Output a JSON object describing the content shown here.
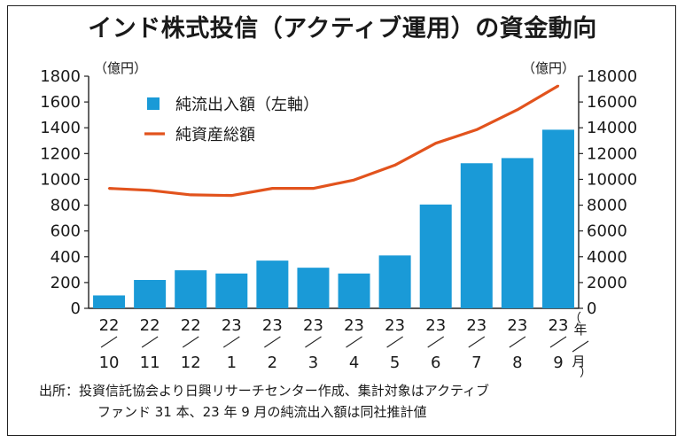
{
  "chart_data": {
    "type": "bar+line",
    "title": "インド株式投信（アクティブ運用）の資金動向",
    "categories": [
      {
        "year": "22",
        "month": "10"
      },
      {
        "year": "22",
        "month": "11"
      },
      {
        "year": "22",
        "month": "12"
      },
      {
        "year": "23",
        "month": "1"
      },
      {
        "year": "23",
        "month": "2"
      },
      {
        "year": "23",
        "month": "3"
      },
      {
        "year": "23",
        "month": "4"
      },
      {
        "year": "23",
        "month": "5"
      },
      {
        "year": "23",
        "month": "6"
      },
      {
        "year": "23",
        "month": "7"
      },
      {
        "year": "23",
        "month": "8"
      },
      {
        "year": "23",
        "month": "9"
      }
    ],
    "x_unit_year": "年",
    "x_unit_month": "月",
    "series": [
      {
        "name": "純流出入額（左軸）",
        "type": "bar",
        "axis": "left",
        "color": "#1a9ad7",
        "values": [
          100,
          220,
          295,
          270,
          370,
          315,
          270,
          410,
          805,
          1125,
          1165,
          1385
        ]
      },
      {
        "name": "純資産総額",
        "type": "line",
        "axis": "right",
        "color": "#e2531d",
        "values": [
          9300,
          9150,
          8800,
          8750,
          9300,
          9300,
          9950,
          11100,
          12800,
          13850,
          15400,
          17250
        ]
      }
    ],
    "y_left": {
      "unit": "（億円）",
      "min": 0,
      "max": 1800,
      "ticks": [
        0,
        200,
        400,
        600,
        800,
        1000,
        1200,
        1400,
        1600,
        1800
      ]
    },
    "y_right": {
      "unit": "（億円）",
      "min": 0,
      "max": 18000,
      "ticks": [
        0,
        2000,
        4000,
        6000,
        8000,
        10000,
        12000,
        14000,
        16000,
        18000
      ]
    },
    "legend_placement": "top-left",
    "grid": false
  },
  "source_line1": "出所：投資信託協会より日興リサーチセンター作成、集計対象はアクティブ",
  "source_line2": "ファンド 31 本、23 年 9 月の純流出入額は同社推計値"
}
